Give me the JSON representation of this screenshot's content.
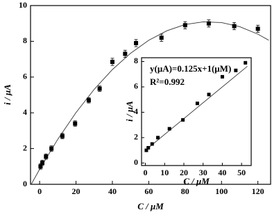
{
  "chart_data": [
    {
      "type": "scatter",
      "x_label": "C / μM",
      "y_label": "i / μA",
      "xlim": [
        -5,
        127
      ],
      "ylim": [
        0,
        10
      ],
      "xticks": [
        0,
        20,
        40,
        60,
        80,
        100,
        120
      ],
      "yticks": [
        0,
        2,
        4,
        6,
        8,
        10
      ],
      "color": "#000000",
      "x": [
        0.5,
        1.5,
        3.5,
        6.5,
        12.5,
        19.5,
        27,
        33,
        40,
        47,
        53,
        67,
        80,
        93,
        107,
        120
      ],
      "values": [
        1.0,
        1.2,
        1.55,
        2.0,
        2.7,
        3.4,
        4.7,
        5.35,
        6.85,
        7.3,
        7.9,
        8.2,
        8.9,
        9.0,
        8.85,
        8.7
      ],
      "errors": [
        0.15,
        0.15,
        0.15,
        0.15,
        0.15,
        0.15,
        0.15,
        0.15,
        0.2,
        0.2,
        0.2,
        0.2,
        0.2,
        0.2,
        0.2,
        0.2
      ],
      "fit": {
        "x": [
          -4.6,
          0,
          10,
          20,
          30,
          40,
          50,
          60,
          70,
          80,
          90,
          100,
          110,
          120,
          126
        ],
        "y": [
          0,
          0.84,
          2.52,
          4.01,
          5.31,
          6.42,
          7.33,
          8.06,
          8.59,
          8.94,
          9.09,
          9.05,
          8.82,
          8.4,
          8.06
        ]
      }
    },
    {
      "type": "scatter",
      "x_label": "C / μM",
      "y_label": "i / μA",
      "annotations": [
        "y(μA)=0.125x+1(μM)",
        "R²=0.992"
      ],
      "xlim": [
        -2,
        55
      ],
      "ylim": [
        -0.2,
        8.3
      ],
      "xticks": [
        0,
        10,
        20,
        30,
        40,
        50
      ],
      "yticks": [
        0,
        2,
        4,
        6,
        8
      ],
      "color": "#000000",
      "x": [
        0.5,
        1.5,
        3.5,
        6.5,
        12.5,
        19.5,
        27,
        33,
        40,
        47,
        52
      ],
      "values": [
        1.0,
        1.2,
        1.5,
        2.0,
        2.7,
        3.4,
        4.7,
        5.4,
        6.8,
        7.3,
        7.9
      ],
      "fit": {
        "x": [
          0,
          53
        ],
        "y": [
          1,
          7.625
        ]
      }
    }
  ]
}
